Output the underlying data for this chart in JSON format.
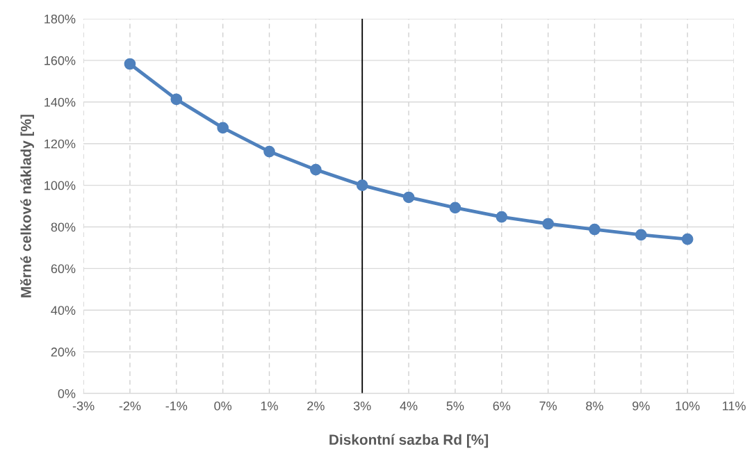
{
  "chart_data": {
    "type": "line",
    "xlabel": "Diskontní sazba Rd [%]",
    "ylabel": "Měrné celkové náklady [%]",
    "x": [
      -2,
      -1,
      0,
      1,
      2,
      3,
      4,
      5,
      6,
      7,
      8,
      9,
      10
    ],
    "series": [
      {
        "color": "#4f81bd",
        "values": [
          158.3,
          141.3,
          127.6,
          116.2,
          107.5,
          100,
          94.2,
          89.2,
          84.8,
          81.5,
          78.8,
          76.2,
          74.1
        ]
      }
    ],
    "xlim": [
      -3,
      11
    ],
    "xticks": [
      {
        "value": -3,
        "label": "-3%"
      },
      {
        "value": -2,
        "label": "-2%"
      },
      {
        "value": -1,
        "label": "-1%"
      },
      {
        "value": 0,
        "label": "0%"
      },
      {
        "value": 1,
        "label": "1%"
      },
      {
        "value": 2,
        "label": "2%"
      },
      {
        "value": 3,
        "label": "3%"
      },
      {
        "value": 4,
        "label": "4%"
      },
      {
        "value": 5,
        "label": "5%"
      },
      {
        "value": 6,
        "label": "6%"
      },
      {
        "value": 7,
        "label": "7%"
      },
      {
        "value": 8,
        "label": "8%"
      },
      {
        "value": 9,
        "label": "9%"
      },
      {
        "value": 10,
        "label": "10%"
      },
      {
        "value": 11,
        "label": "11%"
      }
    ],
    "ylim": [
      0,
      180
    ],
    "yticks": [
      {
        "value": 0,
        "label": "0%"
      },
      {
        "value": 20,
        "label": "20%"
      },
      {
        "value": 40,
        "label": "40%"
      },
      {
        "value": 60,
        "label": "60%"
      },
      {
        "value": 80,
        "label": "80%"
      },
      {
        "value": 100,
        "label": "100%"
      },
      {
        "value": 120,
        "label": "120%"
      },
      {
        "value": 140,
        "label": "140%"
      },
      {
        "value": 160,
        "label": "160%"
      },
      {
        "value": 180,
        "label": "180%"
      }
    ],
    "ref_lines": [
      {
        "axis": "x",
        "value": 3,
        "label": null,
        "color": "#000000"
      }
    ],
    "grid": true,
    "marker": "circle",
    "line_style": "solid",
    "legend": false
  }
}
